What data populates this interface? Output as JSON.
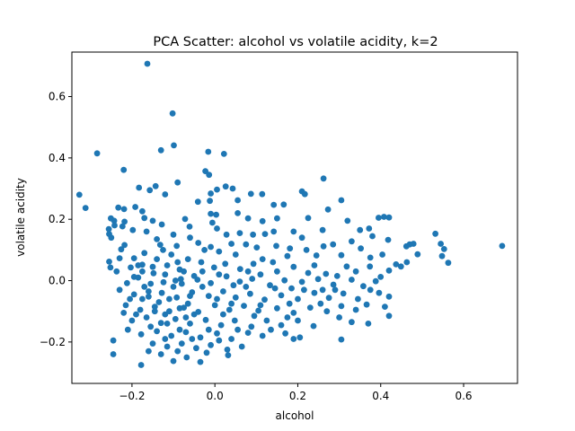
{
  "chart_data": {
    "type": "scatter",
    "title": "PCA Scatter: alcohol vs volatile acidity, k=2",
    "xlabel": "alcohol",
    "ylabel": "volatile acidity",
    "xlim": [
      -0.345,
      0.73
    ],
    "ylim": [
      -0.335,
      0.745
    ],
    "xticks": [
      -0.2,
      0.0,
      0.2,
      0.4,
      0.6
    ],
    "xtick_labels": [
      "−0.2",
      "0.0",
      "0.2",
      "0.4",
      "0.6"
    ],
    "yticks": [
      -0.2,
      0.0,
      0.2,
      0.4,
      0.6
    ],
    "ytick_labels": [
      "−0.2",
      "0.0",
      "0.2",
      "0.4",
      "0.6"
    ],
    "grid": false,
    "color": "#1f77b4",
    "points": [
      [
        -0.163,
        0.707
      ],
      [
        -0.102,
        0.545
      ],
      [
        -0.099,
        0.441
      ],
      [
        -0.13,
        0.425
      ],
      [
        -0.284,
        0.415
      ],
      [
        -0.016,
        0.42
      ],
      [
        0.022,
        0.413
      ],
      [
        -0.22,
        0.361
      ],
      [
        -0.023,
        0.357
      ],
      [
        -0.014,
        0.345
      ],
      [
        -0.09,
        0.32
      ],
      [
        -0.143,
        0.308
      ],
      [
        -0.183,
        0.303
      ],
      [
        -0.157,
        0.295
      ],
      [
        0.026,
        0.307
      ],
      [
        0.043,
        0.3
      ],
      [
        -0.12,
        0.281
      ],
      [
        -0.01,
        0.284
      ],
      [
        0.005,
        0.297
      ],
      [
        0.262,
        0.333
      ],
      [
        0.21,
        0.291
      ],
      [
        0.217,
        0.282
      ],
      [
        0.305,
        0.262
      ],
      [
        -0.327,
        0.28
      ],
      [
        -0.312,
        0.237
      ],
      [
        -0.233,
        0.238
      ],
      [
        -0.219,
        0.233
      ],
      [
        -0.192,
        0.24
      ],
      [
        -0.175,
        0.226
      ],
      [
        0.087,
        0.283
      ],
      [
        0.114,
        0.282
      ],
      [
        0.055,
        0.262
      ],
      [
        -0.041,
        0.257
      ],
      [
        -0.012,
        0.26
      ],
      [
        0.273,
        0.232
      ],
      [
        0.142,
        0.247
      ],
      [
        0.166,
        0.248
      ],
      [
        -0.251,
        0.203
      ],
      [
        -0.243,
        0.195
      ],
      [
        -0.218,
        0.192
      ],
      [
        -0.17,
        0.204
      ],
      [
        -0.15,
        0.195
      ],
      [
        -0.072,
        0.201
      ],
      [
        -0.01,
        0.218
      ],
      [
        0.003,
        0.215
      ],
      [
        0.055,
        0.22
      ],
      [
        0.08,
        0.203
      ],
      [
        0.115,
        0.194
      ],
      [
        0.15,
        0.203
      ],
      [
        0.225,
        0.204
      ],
      [
        0.32,
        0.195
      ],
      [
        0.395,
        0.205
      ],
      [
        0.408,
        0.208
      ],
      [
        0.42,
        0.206
      ],
      [
        0.532,
        0.153
      ],
      [
        0.693,
        0.113
      ],
      [
        -0.256,
        0.168
      ],
      [
        -0.242,
        0.18
      ],
      [
        -0.223,
        0.177
      ],
      [
        -0.198,
        0.165
      ],
      [
        -0.128,
        0.183
      ],
      [
        -0.061,
        0.176
      ],
      [
        -0.006,
        0.189
      ],
      [
        -0.25,
        0.14
      ],
      [
        -0.255,
        0.152
      ],
      [
        0.028,
        0.15
      ],
      [
        0.06,
        0.155
      ],
      [
        0.092,
        0.15
      ],
      [
        0.121,
        0.152
      ],
      [
        0.142,
        0.16
      ],
      [
        0.19,
        0.16
      ],
      [
        0.26,
        0.165
      ],
      [
        0.35,
        0.165
      ],
      [
        0.372,
        0.17
      ],
      [
        0.38,
        0.145
      ],
      [
        0.418,
        0.133
      ],
      [
        0.47,
        0.118
      ],
      [
        0.479,
        0.12
      ],
      [
        0.462,
        0.112
      ],
      [
        0.545,
        0.12
      ],
      [
        0.548,
        0.08
      ],
      [
        0.553,
        0.103
      ],
      [
        0.563,
        0.058
      ],
      [
        -0.226,
        0.102
      ],
      [
        -0.218,
        0.116
      ],
      [
        -0.23,
        0.073
      ],
      [
        -0.17,
        0.09
      ],
      [
        -0.132,
        0.117
      ],
      [
        -0.092,
        0.113
      ],
      [
        -0.04,
        0.123
      ],
      [
        -0.01,
        0.11
      ],
      [
        0.01,
        0.095
      ],
      [
        0.04,
        0.12
      ],
      [
        0.075,
        0.118
      ],
      [
        0.101,
        0.108
      ],
      [
        0.148,
        0.113
      ],
      [
        0.181,
        0.105
      ],
      [
        0.221,
        0.1
      ],
      [
        0.262,
        0.112
      ],
      [
        0.305,
        0.083
      ],
      [
        0.352,
        0.105
      ],
      [
        0.375,
        0.075
      ],
      [
        0.404,
        0.085
      ],
      [
        0.437,
        0.053
      ],
      [
        0.449,
        0.046
      ],
      [
        0.463,
        0.06
      ],
      [
        0.489,
        0.086
      ],
      [
        -0.237,
        0.03
      ],
      [
        -0.203,
        0.043
      ],
      [
        -0.175,
        0.052
      ],
      [
        -0.148,
        0.024
      ],
      [
        -0.115,
        0.05
      ],
      [
        -0.085,
        0.036
      ],
      [
        -0.033,
        0.06
      ],
      [
        -0.002,
        0.043
      ],
      [
        0.025,
        0.055
      ],
      [
        0.061,
        0.038
      ],
      [
        0.093,
        0.055
      ],
      [
        0.14,
        0.06
      ],
      [
        0.19,
        0.045
      ],
      [
        0.24,
        0.05
      ],
      [
        0.268,
        0.022
      ],
      [
        0.318,
        0.046
      ],
      [
        0.34,
        0.03
      ],
      [
        0.374,
        0.046
      ],
      [
        0.4,
        0.012
      ],
      [
        0.42,
        0.033
      ],
      [
        -0.255,
        0.062
      ],
      [
        -0.252,
        0.043
      ],
      [
        -0.212,
        -0.008
      ],
      [
        -0.195,
        0.012
      ],
      [
        -0.155,
        -0.01
      ],
      [
        -0.124,
        -0.005
      ],
      [
        -0.082,
        0.005
      ],
      [
        -0.042,
        0.003
      ],
      [
        -0.01,
        -0.008
      ],
      [
        0.028,
        0.014
      ],
      [
        0.06,
        -0.003
      ],
      [
        0.09,
        0.006
      ],
      [
        0.133,
        -0.015
      ],
      [
        0.168,
        0.001
      ],
      [
        0.21,
        -0.004
      ],
      [
        0.249,
        0.005
      ],
      [
        0.286,
        -0.013
      ],
      [
        0.33,
        0.003
      ],
      [
        0.358,
        -0.018
      ],
      [
        0.388,
        -0.002
      ],
      [
        -0.23,
        -0.03
      ],
      [
        -0.195,
        -0.045
      ],
      [
        -0.16,
        -0.052
      ],
      [
        -0.128,
        -0.04
      ],
      [
        -0.092,
        -0.055
      ],
      [
        -0.055,
        -0.038
      ],
      [
        -0.015,
        -0.05
      ],
      [
        0.02,
        -0.035
      ],
      [
        0.05,
        -0.055
      ],
      [
        0.085,
        -0.043
      ],
      [
        0.12,
        -0.062
      ],
      [
        0.16,
        -0.048
      ],
      [
        0.2,
        -0.06
      ],
      [
        0.24,
        -0.04
      ],
      [
        0.275,
        -0.056
      ],
      [
        0.31,
        -0.042
      ],
      [
        0.345,
        -0.06
      ],
      [
        0.375,
        -0.03
      ],
      [
        0.396,
        -0.04
      ],
      [
        0.42,
        -0.052
      ],
      [
        -0.215,
        -0.08
      ],
      [
        -0.18,
        -0.095
      ],
      [
        -0.145,
        -0.085
      ],
      [
        -0.11,
        -0.1
      ],
      [
        -0.075,
        -0.088
      ],
      [
        -0.04,
        -0.102
      ],
      [
        0.0,
        -0.08
      ],
      [
        0.035,
        -0.095
      ],
      [
        0.07,
        -0.082
      ],
      [
        0.105,
        -0.098
      ],
      [
        0.15,
        -0.09
      ],
      [
        0.19,
        -0.105
      ],
      [
        0.23,
        -0.088
      ],
      [
        0.27,
        -0.1
      ],
      [
        0.305,
        -0.083
      ],
      [
        0.34,
        -0.095
      ],
      [
        0.366,
        -0.078
      ],
      [
        -0.22,
        -0.105
      ],
      [
        -0.2,
        -0.13
      ],
      [
        -0.165,
        -0.12
      ],
      [
        -0.13,
        -0.138
      ],
      [
        -0.095,
        -0.125
      ],
      [
        -0.06,
        -0.14
      ],
      [
        -0.022,
        -0.128
      ],
      [
        0.015,
        -0.145
      ],
      [
        0.048,
        -0.13
      ],
      [
        0.088,
        -0.15
      ],
      [
        0.125,
        -0.13
      ],
      [
        0.16,
        -0.145
      ],
      [
        0.2,
        -0.13
      ],
      [
        0.238,
        -0.148
      ],
      [
        0.3,
        -0.12
      ],
      [
        0.33,
        -0.135
      ],
      [
        -0.21,
        -0.16
      ],
      [
        -0.178,
        -0.175
      ],
      [
        -0.14,
        -0.165
      ],
      [
        -0.105,
        -0.18
      ],
      [
        -0.07,
        -0.168
      ],
      [
        -0.035,
        -0.185
      ],
      [
        0.005,
        -0.172
      ],
      [
        0.04,
        -0.19
      ],
      [
        0.08,
        -0.17
      ],
      [
        0.115,
        -0.18
      ],
      [
        0.17,
        -0.172
      ],
      [
        0.205,
        -0.185
      ],
      [
        -0.245,
        -0.195
      ],
      [
        -0.15,
        -0.205
      ],
      [
        -0.115,
        -0.215
      ],
      [
        -0.08,
        -0.205
      ],
      [
        -0.045,
        -0.22
      ],
      [
        -0.01,
        -0.21
      ],
      [
        0.03,
        -0.225
      ],
      [
        0.065,
        -0.215
      ],
      [
        -0.245,
        -0.24
      ],
      [
        -0.178,
        -0.275
      ],
      [
        -0.13,
        -0.24
      ],
      [
        -0.1,
        -0.262
      ],
      [
        -0.068,
        -0.25
      ],
      [
        -0.035,
        -0.265
      ],
      [
        0.032,
        -0.243
      ],
      [
        0.19,
        -0.19
      ],
      [
        0.305,
        -0.192
      ],
      [
        0.42,
        -0.115
      ],
      [
        0.37,
        -0.14
      ],
      [
        0.41,
        -0.085
      ],
      [
        -0.195,
        0.073
      ],
      [
        -0.165,
        0.16
      ],
      [
        -0.14,
        0.135
      ],
      [
        -0.1,
        0.15
      ],
      [
        -0.06,
        0.14
      ],
      [
        -0.025,
        0.1
      ],
      [
        0.005,
        0.17
      ],
      [
        0.05,
        0.085
      ],
      [
        0.115,
        0.07
      ],
      [
        0.175,
        0.08
      ],
      [
        0.21,
        0.14
      ],
      [
        0.245,
        0.082
      ],
      [
        0.285,
        0.118
      ],
      [
        0.33,
        0.128
      ],
      [
        -0.185,
        0.01
      ],
      [
        -0.14,
        0.07
      ],
      [
        -0.105,
        0.085
      ],
      [
        -0.065,
        0.07
      ],
      [
        -0.03,
        0.03
      ],
      [
        0.01,
        0.02
      ],
      [
        0.045,
        -0.015
      ],
      [
        0.08,
        0.03
      ],
      [
        0.11,
        0.02
      ],
      [
        0.15,
        0.03
      ],
      [
        0.185,
        -0.025
      ],
      [
        0.225,
        0.025
      ],
      [
        0.26,
        -0.03
      ],
      [
        0.295,
        0.015
      ],
      [
        -0.205,
        -0.06
      ],
      [
        -0.17,
        -0.02
      ],
      [
        -0.135,
        -0.07
      ],
      [
        -0.1,
        -0.02
      ],
      [
        -0.065,
        -0.075
      ],
      [
        -0.03,
        -0.02
      ],
      [
        0.005,
        -0.06
      ],
      [
        0.04,
        -0.075
      ],
      [
        0.075,
        -0.02
      ],
      [
        0.11,
        -0.08
      ],
      [
        0.145,
        -0.025
      ],
      [
        0.18,
        -0.075
      ],
      [
        0.215,
        -0.03
      ],
      [
        0.255,
        -0.075
      ],
      [
        0.29,
        -0.03
      ],
      [
        -0.19,
        -0.11
      ],
      [
        -0.155,
        -0.15
      ],
      [
        -0.12,
        -0.11
      ],
      [
        -0.085,
        -0.16
      ],
      [
        -0.05,
        -0.11
      ],
      [
        -0.015,
        -0.16
      ],
      [
        0.02,
        -0.11
      ],
      [
        0.055,
        -0.16
      ],
      [
        0.095,
        -0.115
      ],
      [
        0.135,
        -0.16
      ],
      [
        0.175,
        -0.12
      ],
      [
        -0.16,
        -0.23
      ],
      [
        -0.12,
        -0.19
      ],
      [
        -0.09,
        -0.23
      ],
      [
        -0.055,
        -0.19
      ],
      [
        -0.02,
        -0.235
      ],
      [
        0.01,
        -0.195
      ],
      [
        -0.175,
        0.03
      ],
      [
        -0.16,
        -0.035
      ],
      [
        -0.15,
        0.045
      ],
      [
        -0.12,
        0.02
      ],
      [
        -0.11,
        -0.06
      ],
      [
        -0.09,
        0.06
      ],
      [
        -0.08,
        -0.01
      ],
      [
        -0.07,
        -0.12
      ],
      [
        -0.175,
        -0.06
      ],
      [
        -0.185,
        0.05
      ],
      [
        -0.145,
        -0.1
      ],
      [
        -0.125,
        0.1
      ],
      [
        -0.115,
        -0.14
      ],
      [
        -0.095,
        0.0
      ],
      [
        -0.085,
        -0.09
      ],
      [
        -0.075,
        0.03
      ],
      [
        -0.06,
        -0.05
      ],
      [
        -0.05,
        0.015
      ]
    ]
  }
}
